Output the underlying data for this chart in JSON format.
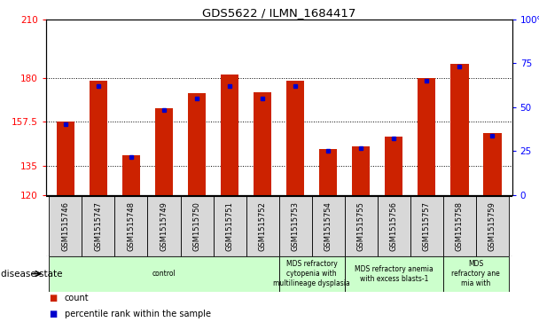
{
  "title": "GDS5622 / ILMN_1684417",
  "samples": [
    "GSM1515746",
    "GSM1515747",
    "GSM1515748",
    "GSM1515749",
    "GSM1515750",
    "GSM1515751",
    "GSM1515752",
    "GSM1515753",
    "GSM1515754",
    "GSM1515755",
    "GSM1515756",
    "GSM1515757",
    "GSM1515758",
    "GSM1515759"
  ],
  "counts": [
    157.5,
    178.5,
    140.5,
    164.5,
    172.0,
    181.5,
    172.5,
    178.5,
    143.5,
    145.0,
    150.0,
    180.0,
    187.0,
    151.5
  ],
  "percentile_ranks": [
    40,
    62,
    28,
    50,
    55,
    62,
    55,
    62,
    33,
    37,
    42,
    65,
    75,
    42
  ],
  "ylim_left": [
    120,
    210
  ],
  "ylim_right": [
    0,
    100
  ],
  "yticks_left": [
    120,
    135,
    157.5,
    180,
    210
  ],
  "yticks_right": [
    0,
    25,
    50,
    75,
    100
  ],
  "bar_color": "#cc2200",
  "dot_color": "#0000cc",
  "bar_width": 0.55,
  "disease_groups": [
    {
      "label": "control",
      "start": 0,
      "end": 7,
      "color": "#ccffcc"
    },
    {
      "label": "MDS refractory\ncytopenia with\nmultilineage dysplasia",
      "start": 7,
      "end": 9,
      "color": "#ccffcc"
    },
    {
      "label": "MDS refractory anemia\nwith excess blasts-1",
      "start": 9,
      "end": 12,
      "color": "#ccffcc"
    },
    {
      "label": "MDS\nrefractory ane\nmia with",
      "start": 12,
      "end": 14,
      "color": "#ccffcc"
    }
  ],
  "xlabel_disease": "disease state",
  "legend_count": "count",
  "legend_percentile": "percentile rank within the sample",
  "tick_bg_color": "#d8d8d8",
  "figure_bg": "#ffffff"
}
